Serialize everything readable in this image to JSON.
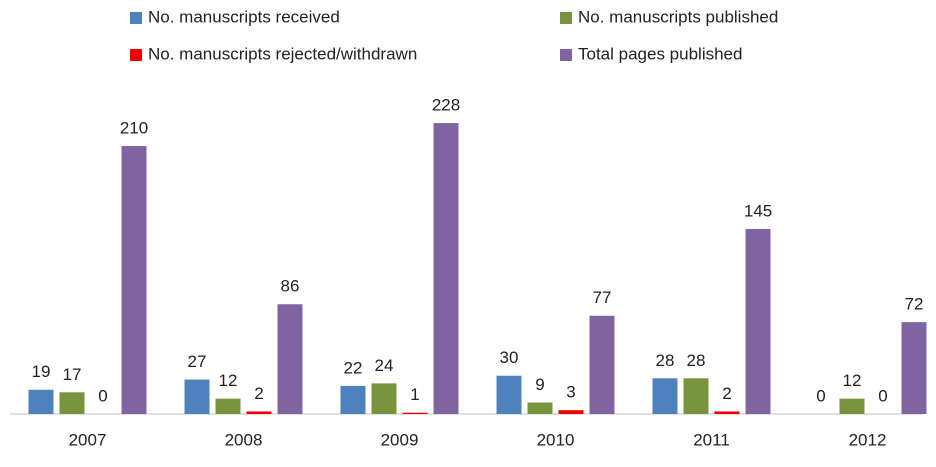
{
  "chart_data": {
    "type": "bar",
    "categories": [
      "2007",
      "2008",
      "2009",
      "2010",
      "2011",
      "2012"
    ],
    "series": [
      {
        "name": "No. manuscripts received",
        "color": "#4f81bd",
        "values": [
          19,
          27,
          22,
          30,
          28,
          0
        ]
      },
      {
        "name": "No. manuscripts published",
        "color": "#77933c",
        "values": [
          17,
          12,
          24,
          9,
          28,
          12
        ]
      },
      {
        "name": "No. manuscripts rejected/withdrawn",
        "color": "#ee0000",
        "values": [
          0,
          2,
          1,
          3,
          2,
          0
        ]
      },
      {
        "name": "Total pages published",
        "color": "#8064a2",
        "values": [
          210,
          86,
          228,
          77,
          145,
          72
        ]
      }
    ]
  }
}
